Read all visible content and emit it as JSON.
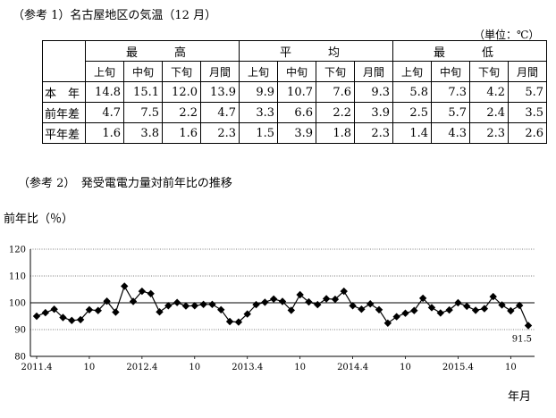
{
  "ref1_title": "（参考 1）名古屋地区の気温（12 月）",
  "unit_label": "（単位：℃）",
  "table": {
    "groups": [
      "最　高",
      "平　均",
      "最　低"
    ],
    "subheaders": [
      "上旬",
      "中旬",
      "下旬",
      "月間"
    ],
    "rows": [
      {
        "label": "本　年",
        "values": [
          "14.8",
          "15.1",
          "12.0",
          "13.9",
          "9.9",
          "10.7",
          "7.6",
          "9.3",
          "5.8",
          "7.3",
          "4.2",
          "5.7"
        ]
      },
      {
        "label": "前年差",
        "values": [
          "4.7",
          "7.5",
          "2.2",
          "4.7",
          "3.3",
          "6.6",
          "2.2",
          "3.9",
          "2.5",
          "5.7",
          "2.4",
          "3.5"
        ]
      },
      {
        "label": "平年差",
        "values": [
          "1.6",
          "3.8",
          "1.6",
          "2.3",
          "1.5",
          "3.9",
          "1.8",
          "2.3",
          "1.4",
          "4.3",
          "2.3",
          "2.6"
        ]
      }
    ]
  },
  "ref2_title": "（参考 2）　発受電電力量対前年比の推移",
  "y_axis_label": "前年比（％）",
  "x_axis_unit": "年月",
  "chart_data": {
    "type": "line",
    "x_tick_labels": [
      "2011.4",
      "10",
      "2012.4",
      "10",
      "2013.4",
      "10",
      "2014.4",
      "10",
      "2015.4",
      "10"
    ],
    "ylim": [
      80,
      120
    ],
    "yticks": [
      80,
      90,
      100,
      110,
      120
    ],
    "reference_line": 100,
    "last_point_label": "91.5",
    "series": [
      {
        "values": [
          95.0,
          96.3,
          97.6,
          94.5,
          93.4,
          93.7,
          97.4,
          97.1,
          100.6,
          96.5,
          106.2,
          100.5,
          104.3,
          103.4,
          96.6,
          98.9,
          100.1,
          98.8,
          98.9,
          99.4,
          99.4,
          97.4,
          93.0,
          92.8,
          95.8,
          99.3,
          100.2,
          101.4,
          100.5,
          97.2,
          103.0,
          100.3,
          99.3,
          101.5,
          101.3,
          104.3,
          98.9,
          97.6,
          99.6,
          97.4,
          92.4,
          94.8,
          96.1,
          97.1,
          101.7,
          98.2,
          96.2,
          97.3,
          100.0,
          98.7,
          97.2,
          97.8,
          102.3,
          99.2,
          97.0,
          99.0,
          91.5
        ]
      }
    ],
    "grid": true,
    "legend": "none"
  }
}
